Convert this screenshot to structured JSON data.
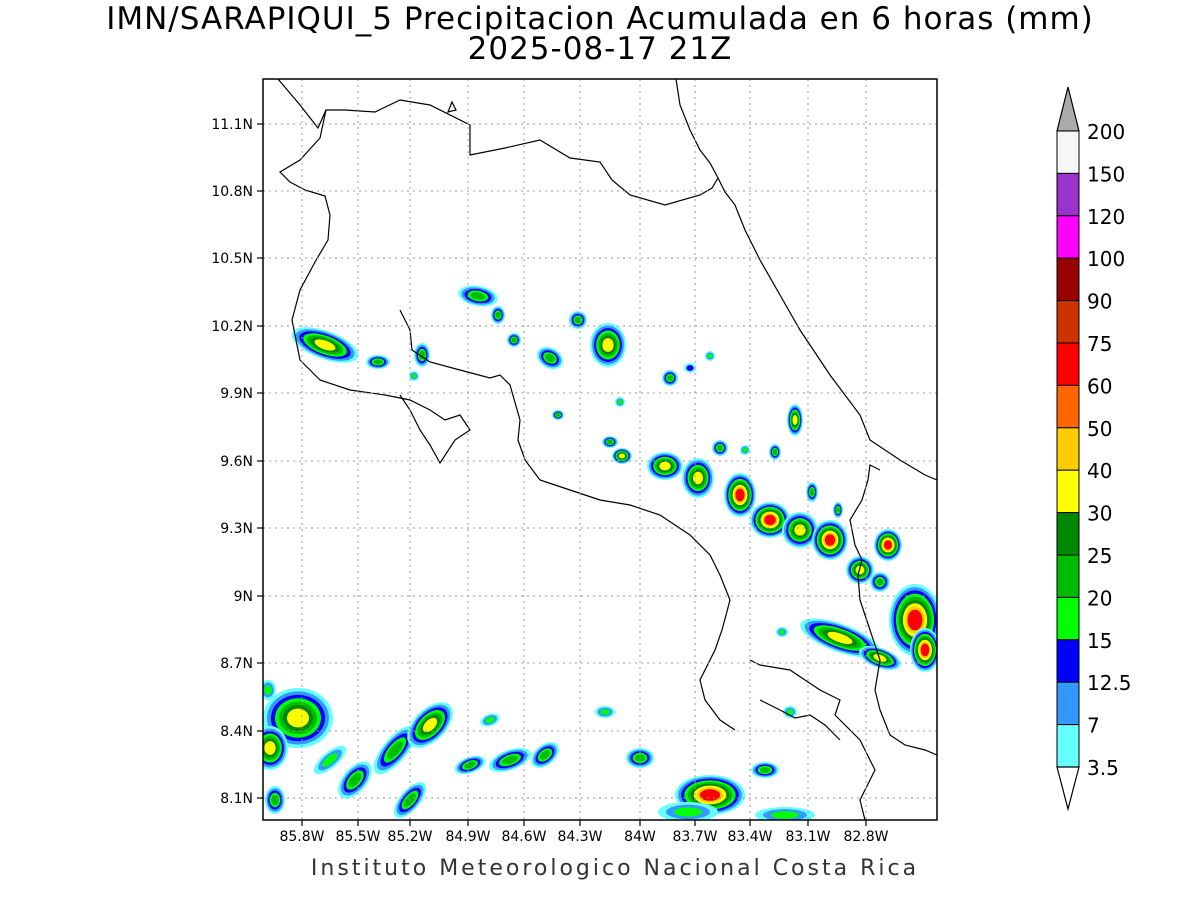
{
  "title": {
    "line1": "IMN/SARAPIQUI_5 Precipitacion Acumulada en 6 horas (mm)",
    "line2": "2025-08-17 21Z"
  },
  "map": {
    "lat_ticks": [
      "11.1N",
      "10.8N",
      "10.5N",
      "10.2N",
      "9.9N",
      "9.6N",
      "9.3N",
      "9N",
      "8.7N",
      "8.4N",
      "8.1N"
    ],
    "lon_ticks": [
      "85.8W",
      "85.5W",
      "85.2W",
      "84.9W",
      "84.6W",
      "84.3W",
      "84W",
      "83.7W",
      "83.4W",
      "83.1W",
      "82.8W"
    ],
    "grid": true,
    "lon_range": [
      -85.9,
      -82.6
    ],
    "lat_range": [
      8.0,
      11.3
    ]
  },
  "legend": {
    "labels": [
      "200",
      "150",
      "120",
      "100",
      "90",
      "75",
      "60",
      "50",
      "40",
      "30",
      "25",
      "20",
      "15",
      "12.5",
      "7",
      "3.5"
    ],
    "colors": [
      "#f6f6f6",
      "#9933cc",
      "#ff00ff",
      "#990000",
      "#cc3300",
      "#ff0000",
      "#ff6600",
      "#ffcc00",
      "#ffff00",
      "#008800",
      "#00bb00",
      "#00ff00",
      "#0000ff",
      "#3399ff",
      "#66ffff"
    ],
    "over_color": "#aaaaaa",
    "under_color": "#ffffff"
  },
  "footer": "Instituto Meteorologico Nacional Costa Rica"
}
